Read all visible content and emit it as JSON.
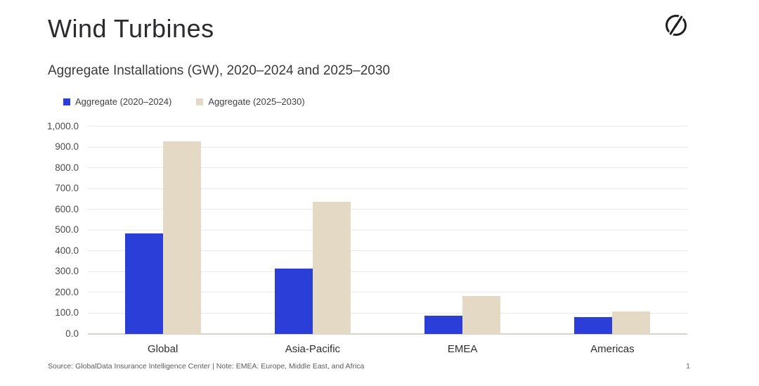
{
  "header": {
    "title": "Wind Turbines",
    "logo_icon": "globaldata-logo"
  },
  "chart_data": {
    "type": "bar",
    "title": "Aggregate Installations (GW), 2020–2024 and 2025–2030",
    "categories": [
      "Global",
      "Asia-Pacific",
      "EMEA",
      "Americas"
    ],
    "series": [
      {
        "name": "Aggregate (2020–2024)",
        "color": "#2c3ed8",
        "values": [
          486,
          315,
          88,
          80
        ]
      },
      {
        "name": "Aggregate (2025–2030)",
        "color": "#e4d9c5",
        "values": [
          930,
          638,
          184,
          110
        ]
      }
    ],
    "xlabel": "",
    "ylabel": "",
    "ylim": [
      0,
      1000
    ],
    "ytick_step": 100,
    "ytick_labels": [
      "0.0",
      "100.0",
      "200.0",
      "300.0",
      "400.0",
      "500.0",
      "600.0",
      "700.0",
      "800.0",
      "900.0",
      "1,000.0"
    ],
    "grid": true,
    "legend_position": "top-left",
    "gridline_color": "#ebe9e7",
    "axis_line_color": "#d9d2ca"
  },
  "footer": {
    "source": "Source: GlobalData Insurance Intelligence Center | Note: EMEA: Europe, Middle East, and Africa",
    "page": "1"
  }
}
